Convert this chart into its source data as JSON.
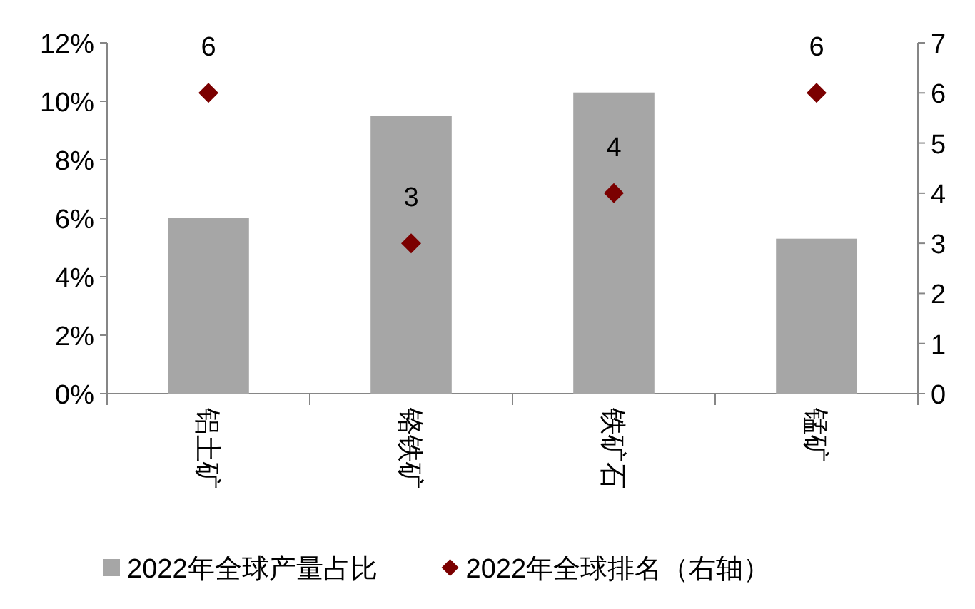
{
  "chart_data": {
    "type": "bar",
    "categories": [
      "铝土矿",
      "铬铁矿",
      "铁矿石",
      "锰矿"
    ],
    "series": [
      {
        "name": "2022年全球产量占比",
        "color": "#a6a6a6",
        "values": [
          6.0,
          9.5,
          10.3,
          5.3
        ]
      },
      {
        "name": "2022年全球排名（右轴）",
        "type": "scatter",
        "axis": "y2",
        "marker": "diamond",
        "color": "#7b0000",
        "values": [
          6,
          3,
          4,
          6
        ],
        "value_labels": [
          "6",
          "3",
          "4",
          "6"
        ]
      }
    ],
    "ylim": [
      0,
      12
    ],
    "yticks": [
      {
        "value": 0,
        "label": "0%"
      },
      {
        "value": 2,
        "label": "2%"
      },
      {
        "value": 4,
        "label": "4%"
      },
      {
        "value": 6,
        "label": "6%"
      },
      {
        "value": 8,
        "label": "8%"
      },
      {
        "value": 10,
        "label": "10%"
      },
      {
        "value": 12,
        "label": "12%"
      }
    ],
    "y2lim": [
      0,
      7
    ],
    "y2ticks": [
      0,
      1,
      2,
      3,
      4,
      5,
      6,
      7
    ],
    "legend": "bottom",
    "grid": false
  }
}
